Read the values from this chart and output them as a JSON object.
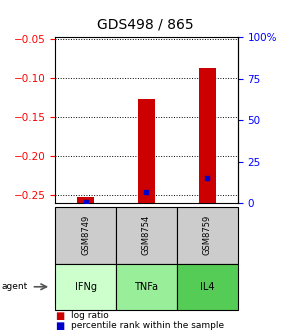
{
  "title": "GDS498 / 865",
  "samples": [
    "GSM8749",
    "GSM8754",
    "GSM8759"
  ],
  "agents": [
    "IFNg",
    "TNFa",
    "IL4"
  ],
  "agent_colors": [
    "#ccffcc",
    "#99ee99",
    "#55cc55"
  ],
  "log_ratios": [
    -0.252,
    -0.127,
    -0.087
  ],
  "percentile_ranks": [
    1.0,
    7.0,
    15.0
  ],
  "ylim_left": [
    -0.26,
    -0.048
  ],
  "ylim_right": [
    0,
    100
  ],
  "yticks_left": [
    -0.25,
    -0.2,
    -0.15,
    -0.1,
    -0.05
  ],
  "yticks_right": [
    0,
    25,
    50,
    75,
    100
  ],
  "bar_color": "#cc0000",
  "dot_color": "#0000cc",
  "sample_box_color": "#cccccc",
  "title_fontsize": 10,
  "tick_fontsize": 7.5,
  "legend_fontsize": 6.5,
  "bar_width": 0.28
}
